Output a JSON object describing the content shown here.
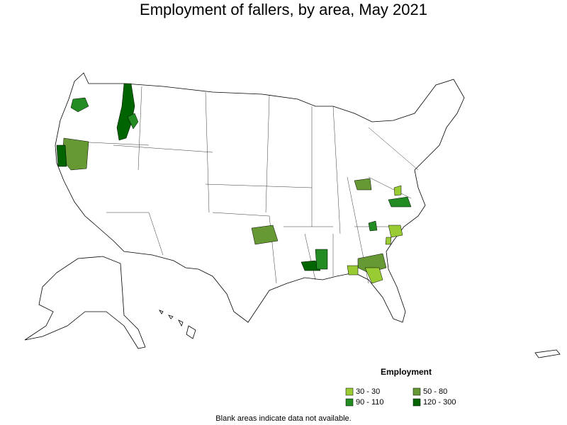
{
  "title": "Employment of fallers, by area, May 2021",
  "legend": {
    "title": "Employment",
    "items": [
      {
        "label": "30 - 30",
        "color": "#99cc33"
      },
      {
        "label": "50 - 80",
        "color": "#669933"
      },
      {
        "label": "90 - 110",
        "color": "#228b22"
      },
      {
        "label": "120 - 300",
        "color": "#006400"
      }
    ]
  },
  "footnote": "Blank areas indicate data not available."
}
